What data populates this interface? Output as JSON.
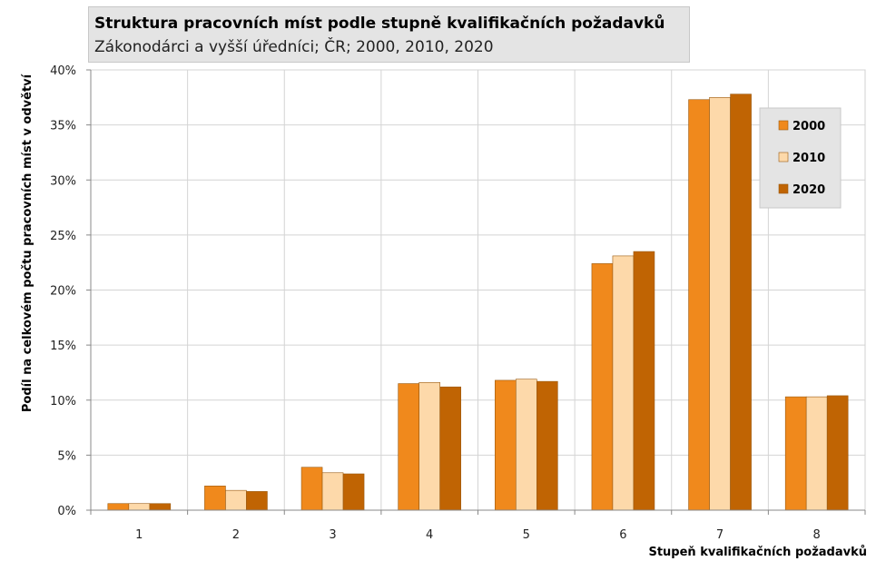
{
  "header": {
    "title": "Struktura pracovních míst podle stupně kvalifikačních požadavků",
    "subtitle": "Zákonodárci a vyšší úředníci; ČR; 2000, 2010, 2020"
  },
  "chart_data": {
    "type": "bar",
    "title": "Struktura pracovních míst podle stupně kvalifikačních požadavků",
    "subtitle": "Zákonodárci a vyšší úředníci; ČR; 2000, 2010, 2020",
    "xlabel": "Stupeň kvalifikačních požadavků",
    "ylabel": "Podíl na celkovém počtu pracovních míst v odvětví",
    "categories": [
      "1",
      "2",
      "3",
      "4",
      "5",
      "6",
      "7",
      "8"
    ],
    "ylim": [
      0,
      40
    ],
    "yticks": [
      "0%",
      "5%",
      "10%",
      "15%",
      "20%",
      "25%",
      "30%",
      "35%",
      "40%"
    ],
    "grid": true,
    "legend_position": "top-right",
    "series": [
      {
        "name": "2000",
        "color": "#f0891c",
        "values": [
          0.6,
          2.2,
          3.9,
          11.5,
          11.8,
          22.4,
          37.3,
          10.3
        ]
      },
      {
        "name": "2010",
        "color": "#fdd9aa",
        "values": [
          0.6,
          1.8,
          3.4,
          11.6,
          11.9,
          23.1,
          37.5,
          10.3
        ]
      },
      {
        "name": "2020",
        "color": "#c06403",
        "values": [
          0.6,
          1.7,
          3.3,
          11.2,
          11.7,
          23.5,
          37.8,
          10.4
        ]
      }
    ]
  }
}
